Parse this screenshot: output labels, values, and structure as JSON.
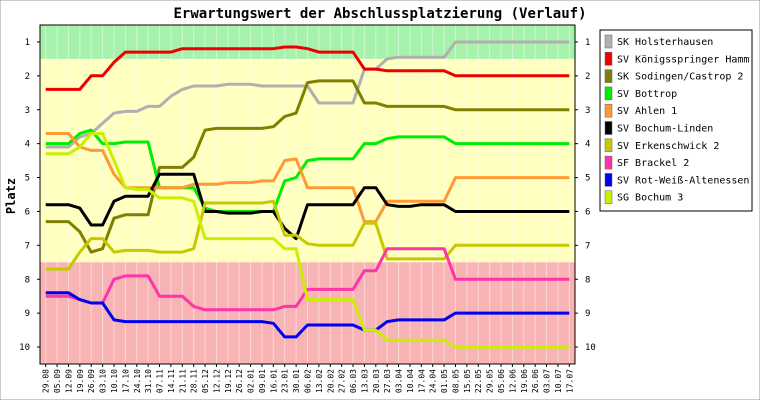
{
  "chart_data": {
    "type": "line",
    "title": "Erwartungswert der Abschlussplatzierung (Verlauf)",
    "ylabel": "Platz",
    "xlabel": "",
    "ylim": [
      10.5,
      0.5
    ],
    "y_ticks": [
      1,
      2,
      3,
      4,
      5,
      6,
      7,
      8,
      9,
      10
    ],
    "bands": [
      {
        "from": 0.5,
        "to": 1.5,
        "color": "#a6f2ad"
      },
      {
        "from": 1.5,
        "to": 7.5,
        "color": "#ffffc0"
      },
      {
        "from": 7.5,
        "to": 10.5,
        "color": "#f8b4b4"
      }
    ],
    "categories": [
      "29.08",
      "05.09",
      "12.09",
      "19.09",
      "26.09",
      "03.10",
      "10.10",
      "17.10",
      "24.10",
      "31.10",
      "07.11",
      "14.11",
      "21.11",
      "28.11",
      "05.12",
      "12.12",
      "19.12",
      "26.12",
      "02.01",
      "09.01",
      "16.01",
      "23.01",
      "30.01",
      "06.02",
      "13.02",
      "20.02",
      "27.02",
      "06.03",
      "13.03",
      "20.03",
      "27.03",
      "03.04",
      "10.04",
      "17.04",
      "24.04",
      "01.05",
      "08.05",
      "15.05",
      "22.05",
      "29.05",
      "05.06",
      "12.06",
      "19.06",
      "26.06",
      "03.07",
      "10.07",
      "17.07"
    ],
    "legend_position": "right",
    "series": [
      {
        "name": "SK Holsterhausen",
        "color": "#b0b0b0",
        "values": [
          4.1,
          4.1,
          4.1,
          3.8,
          3.7,
          3.4,
          3.1,
          3.05,
          3.05,
          2.9,
          2.9,
          2.6,
          2.4,
          2.3,
          2.3,
          2.3,
          2.25,
          2.25,
          2.25,
          2.3,
          2.3,
          2.3,
          2.3,
          2.3,
          2.8,
          2.8,
          2.8,
          2.8,
          1.8,
          1.8,
          1.5,
          1.45,
          1.45,
          1.45,
          1.45,
          1.45,
          1.0,
          1.0,
          1.0,
          1.0,
          1.0,
          1.0,
          1.0,
          1.0,
          1.0,
          1.0,
          1.0
        ]
      },
      {
        "name": "SV Königsspringer Hamm",
        "color": "#ee0000",
        "values": [
          2.4,
          2.4,
          2.4,
          2.4,
          2.0,
          2.0,
          1.6,
          1.3,
          1.3,
          1.3,
          1.3,
          1.3,
          1.2,
          1.2,
          1.2,
          1.2,
          1.2,
          1.2,
          1.2,
          1.2,
          1.2,
          1.15,
          1.15,
          1.2,
          1.3,
          1.3,
          1.3,
          1.3,
          1.8,
          1.8,
          1.85,
          1.85,
          1.85,
          1.85,
          1.85,
          1.85,
          2.0,
          2.0,
          2.0,
          2.0,
          2.0,
          2.0,
          2.0,
          2.0,
          2.0,
          2.0,
          2.0
        ]
      },
      {
        "name": "SK Sodingen/Castrop 2",
        "color": "#808000",
        "values": [
          6.3,
          6.3,
          6.3,
          6.6,
          7.2,
          7.1,
          6.2,
          6.1,
          6.1,
          6.1,
          4.7,
          4.7,
          4.7,
          4.4,
          3.6,
          3.55,
          3.55,
          3.55,
          3.55,
          3.55,
          3.5,
          3.2,
          3.1,
          2.2,
          2.15,
          2.15,
          2.15,
          2.15,
          2.8,
          2.8,
          2.9,
          2.9,
          2.9,
          2.9,
          2.9,
          2.9,
          3.0,
          3.0,
          3.0,
          3.0,
          3.0,
          3.0,
          3.0,
          3.0,
          3.0,
          3.0,
          3.0
        ]
      },
      {
        "name": "SV Bottrop",
        "color": "#00ee00",
        "values": [
          4.0,
          4.0,
          4.0,
          3.7,
          3.6,
          4.0,
          4.0,
          3.95,
          3.95,
          3.95,
          5.3,
          5.3,
          5.3,
          5.3,
          5.9,
          6.0,
          6.0,
          6.0,
          6.0,
          6.0,
          6.0,
          5.1,
          5.0,
          4.5,
          4.45,
          4.45,
          4.45,
          4.45,
          4.0,
          4.0,
          3.85,
          3.8,
          3.8,
          3.8,
          3.8,
          3.8,
          4.0,
          4.0,
          4.0,
          4.0,
          4.0,
          4.0,
          4.0,
          4.0,
          4.0,
          4.0,
          4.0
        ]
      },
      {
        "name": "SV Ahlen 1",
        "color": "#ff9933",
        "values": [
          3.7,
          3.7,
          3.7,
          4.1,
          4.2,
          4.2,
          4.9,
          5.3,
          5.3,
          5.3,
          5.3,
          5.3,
          5.3,
          5.2,
          5.2,
          5.2,
          5.15,
          5.15,
          5.15,
          5.1,
          5.1,
          4.5,
          4.45,
          5.3,
          5.3,
          5.3,
          5.3,
          5.3,
          6.3,
          6.3,
          5.7,
          5.7,
          5.7,
          5.7,
          5.7,
          5.7,
          5.0,
          5.0,
          5.0,
          5.0,
          5.0,
          5.0,
          5.0,
          5.0,
          5.0,
          5.0,
          5.0
        ]
      },
      {
        "name": "SV Bochum-Linden",
        "color": "#000000",
        "values": [
          5.8,
          5.8,
          5.8,
          5.9,
          6.4,
          6.4,
          5.7,
          5.55,
          5.55,
          5.55,
          4.9,
          4.9,
          4.9,
          4.9,
          6.0,
          6.0,
          6.05,
          6.05,
          6.05,
          6.0,
          6.0,
          6.5,
          6.8,
          5.8,
          5.8,
          5.8,
          5.8,
          5.8,
          5.3,
          5.3,
          5.8,
          5.85,
          5.85,
          5.8,
          5.8,
          5.8,
          6.0,
          6.0,
          6.0,
          6.0,
          6.0,
          6.0,
          6.0,
          6.0,
          6.0,
          6.0,
          6.0
        ]
      },
      {
        "name": "SV Erkenschwick 2",
        "color": "#c8c800",
        "values": [
          7.7,
          7.7,
          7.7,
          7.2,
          6.8,
          6.8,
          7.2,
          7.15,
          7.15,
          7.15,
          7.2,
          7.2,
          7.2,
          7.1,
          5.75,
          5.75,
          5.75,
          5.75,
          5.75,
          5.75,
          5.7,
          6.7,
          6.7,
          6.95,
          7.0,
          7.0,
          7.0,
          7.0,
          6.35,
          6.35,
          7.4,
          7.4,
          7.4,
          7.4,
          7.4,
          7.4,
          7.0,
          7.0,
          7.0,
          7.0,
          7.0,
          7.0,
          7.0,
          7.0,
          7.0,
          7.0,
          7.0
        ]
      },
      {
        "name": "SF Brackel 2",
        "color": "#ff33aa",
        "values": [
          8.5,
          8.5,
          8.5,
          8.6,
          8.7,
          8.7,
          8.0,
          7.9,
          7.9,
          7.9,
          8.5,
          8.5,
          8.5,
          8.8,
          8.9,
          8.9,
          8.9,
          8.9,
          8.9,
          8.9,
          8.9,
          8.8,
          8.8,
          8.3,
          8.3,
          8.3,
          8.3,
          8.3,
          7.75,
          7.75,
          7.1,
          7.1,
          7.1,
          7.1,
          7.1,
          7.1,
          8.0,
          8.0,
          8.0,
          8.0,
          8.0,
          8.0,
          8.0,
          8.0,
          8.0,
          8.0,
          8.0
        ]
      },
      {
        "name": "SV Rot-Weiß-Altenessen",
        "color": "#0000ee",
        "values": [
          8.4,
          8.4,
          8.4,
          8.6,
          8.7,
          8.7,
          9.2,
          9.25,
          9.25,
          9.25,
          9.25,
          9.25,
          9.25,
          9.25,
          9.25,
          9.25,
          9.25,
          9.25,
          9.25,
          9.25,
          9.3,
          9.7,
          9.7,
          9.35,
          9.35,
          9.35,
          9.35,
          9.35,
          9.5,
          9.5,
          9.25,
          9.2,
          9.2,
          9.2,
          9.2,
          9.2,
          9.0,
          9.0,
          9.0,
          9.0,
          9.0,
          9.0,
          9.0,
          9.0,
          9.0,
          9.0,
          9.0
        ]
      },
      {
        "name": "SG Bochum 3",
        "color": "#ccee00",
        "values": [
          4.3,
          4.3,
          4.3,
          4.1,
          3.7,
          3.7,
          4.5,
          5.3,
          5.35,
          5.35,
          5.6,
          5.6,
          5.6,
          5.7,
          6.8,
          6.8,
          6.8,
          6.8,
          6.8,
          6.8,
          6.8,
          7.1,
          7.1,
          8.6,
          8.6,
          8.6,
          8.6,
          8.6,
          9.5,
          9.5,
          9.8,
          9.8,
          9.8,
          9.8,
          9.8,
          9.8,
          10.0,
          10.0,
          10.0,
          10.0,
          10.0,
          10.0,
          10.0,
          10.0,
          10.0,
          10.0,
          10.0
        ]
      }
    ]
  }
}
